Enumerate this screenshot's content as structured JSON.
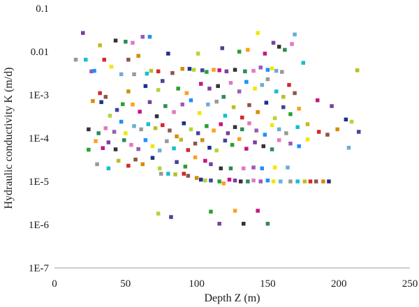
{
  "chart_data": {
    "type": "scatter",
    "title": "",
    "xlabel": "Depth Z (m)",
    "ylabel": "Hydraulic conductivity K (m/d)",
    "x_scale": "linear",
    "y_scale": "log",
    "xlim": [
      0,
      250
    ],
    "ylim": [
      1e-07,
      0.1
    ],
    "x_ticks": [
      "0",
      "50",
      "100",
      "150",
      "200",
      "250"
    ],
    "y_ticks": [
      "1E-7",
      "1E-6",
      "1E-5",
      "1E-4",
      "1E-3",
      "0.01",
      "0.1"
    ],
    "grid": false,
    "legend": "none",
    "marker": "square",
    "palette": [
      "#d62728",
      "#1f2f8c",
      "#2ca02c",
      "#7b3fa0",
      "#e377c2",
      "#f2e600",
      "#17becf",
      "#8c564b",
      "#b5d33a",
      "#ff9f1c",
      "#333333",
      "#9b59b6",
      "#6baed6",
      "#bcbd22",
      "#d68c00",
      "#444499",
      "#c71585",
      "#2e8b57",
      "#1e90ff",
      "#999999"
    ],
    "points": [
      [
        20,
        0.027
      ],
      [
        43,
        0.018
      ],
      [
        50,
        0.017
      ],
      [
        55,
        0.016
      ],
      [
        62,
        0.022
      ],
      [
        67,
        0.022
      ],
      [
        143,
        0.027
      ],
      [
        169,
        0.025
      ],
      [
        15,
        0.0065
      ],
      [
        22,
        0.0065
      ],
      [
        32,
        0.014
      ],
      [
        35,
        0.0065
      ],
      [
        52,
        0.0065
      ],
      [
        59,
        0.008
      ],
      [
        80,
        0.009
      ],
      [
        101,
        0.009
      ],
      [
        118,
        0.012
      ],
      [
        130,
        0.01
      ],
      [
        136,
        0.011
      ],
      [
        148,
        0.009
      ],
      [
        154,
        0.016
      ],
      [
        158,
        0.013
      ],
      [
        162,
        0.011
      ],
      [
        167,
        0.015
      ],
      [
        26,
        0.0035
      ],
      [
        28,
        0.0036
      ],
      [
        40,
        0.0045
      ],
      [
        47,
        0.003
      ],
      [
        56,
        0.003
      ],
      [
        65,
        0.0031
      ],
      [
        68,
        0.0036
      ],
      [
        73,
        0.0035
      ],
      [
        83,
        0.0032
      ],
      [
        90,
        0.004
      ],
      [
        95,
        0.004
      ],
      [
        98,
        0.0038
      ],
      [
        104,
        0.0037
      ],
      [
        107,
        0.0034
      ],
      [
        112,
        0.0038
      ],
      [
        116,
        0.0037
      ],
      [
        121,
        0.0035
      ],
      [
        127,
        0.0038
      ],
      [
        134,
        0.0035
      ],
      [
        140,
        0.0036
      ],
      [
        145,
        0.0043
      ],
      [
        150,
        0.0038
      ],
      [
        153,
        0.0041
      ],
      [
        156,
        0.0036
      ],
      [
        160,
        0.0034
      ],
      [
        175,
        0.0055
      ],
      [
        213,
        0.0037
      ],
      [
        32,
        0.0011
      ],
      [
        36,
        0.0009
      ],
      [
        52,
        0.0012
      ],
      [
        64,
        0.0016
      ],
      [
        73,
        0.0013
      ],
      [
        76,
        0.0021
      ],
      [
        87,
        0.0014
      ],
      [
        93,
        0.0011
      ],
      [
        103,
        0.0018
      ],
      [
        109,
        0.0014
      ],
      [
        115,
        0.0016
      ],
      [
        119,
        0.0009
      ],
      [
        124,
        0.0019
      ],
      [
        130,
        0.0012
      ],
      [
        135,
        0.002
      ],
      [
        141,
        0.0014
      ],
      [
        146,
        0.0017
      ],
      [
        150,
        0.0023
      ],
      [
        156,
        0.0012
      ],
      [
        161,
        0.0009
      ],
      [
        165,
        0.0017
      ],
      [
        169,
        0.0011
      ],
      [
        27,
        0.00072
      ],
      [
        33,
        0.00068
      ],
      [
        39,
        0.00033
      ],
      [
        44,
        0.00045
      ],
      [
        48,
        0.00061
      ],
      [
        55,
        0.0006
      ],
      [
        60,
        0.00041
      ],
      [
        67,
        0.00068
      ],
      [
        72,
        0.00032
      ],
      [
        78,
        0.00055
      ],
      [
        84,
        0.0004
      ],
      [
        90,
        0.0006
      ],
      [
        96,
        0.00075
      ],
      [
        102,
        0.00038
      ],
      [
        108,
        0.0006
      ],
      [
        114,
        0.0007
      ],
      [
        120,
        0.00033
      ],
      [
        126,
        0.00052
      ],
      [
        132,
        0.0003
      ],
      [
        137,
        0.00058
      ],
      [
        143,
        0.0004
      ],
      [
        149,
        0.00066
      ],
      [
        155,
        0.00029
      ],
      [
        161,
        0.00052
      ],
      [
        166,
        0.00036
      ],
      [
        172,
        0.00048
      ],
      [
        185,
        0.00075
      ],
      [
        195,
        0.00055
      ],
      [
        24,
        0.00016
      ],
      [
        31,
        0.00013
      ],
      [
        36,
        0.00017
      ],
      [
        42,
        0.00014
      ],
      [
        47,
        0.00024
      ],
      [
        50,
        0.00013
      ],
      [
        56,
        0.00019
      ],
      [
        61,
        0.00016
      ],
      [
        66,
        0.00021
      ],
      [
        71,
        0.00017
      ],
      [
        76,
        0.0002
      ],
      [
        81,
        0.00015
      ],
      [
        86,
        0.00011
      ],
      [
        91,
        0.00022
      ],
      [
        96,
        0.00016
      ],
      [
        101,
        0.00013
      ],
      [
        107,
        0.00019
      ],
      [
        112,
        0.00015
      ],
      [
        117,
        0.00021
      ],
      [
        122,
        0.00013
      ],
      [
        127,
        0.00018
      ],
      [
        132,
        0.00016
      ],
      [
        137,
        0.00022
      ],
      [
        142,
        0.00015
      ],
      [
        148,
        0.00012
      ],
      [
        153,
        0.0002
      ],
      [
        158,
        0.00016
      ],
      [
        163,
        0.00013
      ],
      [
        171,
        0.00018
      ],
      [
        178,
        0.00021
      ],
      [
        186,
        0.00014
      ],
      [
        192,
        0.00012
      ],
      [
        199,
        0.00016
      ],
      [
        205,
        0.00027
      ],
      [
        209,
        0.00024
      ],
      [
        214,
        0.00014
      ],
      [
        24,
        5.4e-05
      ],
      [
        29,
        8.5e-05
      ],
      [
        34,
        5.9e-05
      ],
      [
        38,
        8e-05
      ],
      [
        43,
        5.5e-05
      ],
      [
        49,
        9e-05
      ],
      [
        54,
        7e-05
      ],
      [
        59,
        5.6e-05
      ],
      [
        64,
        9e-05
      ],
      [
        69,
        6.5e-05
      ],
      [
        74,
        5.2e-05
      ],
      [
        79,
        8.5e-05
      ],
      [
        84,
        5.8e-05
      ],
      [
        89,
        9.2e-05
      ],
      [
        94,
        5.3e-05
      ],
      [
        99,
        7.5e-05
      ],
      [
        104,
        9e-05
      ],
      [
        109,
        6e-05
      ],
      [
        114,
        5.2e-05
      ],
      [
        120,
        8.8e-05
      ],
      [
        125,
        7e-05
      ],
      [
        130,
        9.5e-05
      ],
      [
        135,
        5.7e-05
      ],
      [
        141,
        8e-05
      ],
      [
        147,
        6.5e-05
      ],
      [
        153,
        5.5e-05
      ],
      [
        158,
        9e-05
      ],
      [
        166,
        7.5e-05
      ],
      [
        172,
        6.5e-05
      ],
      [
        178,
        9.3e-05
      ],
      [
        207,
        6e-05
      ],
      [
        30,
        2.5e-05
      ],
      [
        38,
        2e-05
      ],
      [
        45,
        3e-05
      ],
      [
        52,
        2.3e-05
      ],
      [
        57,
        3.2e-05
      ],
      [
        62,
        2.5e-05
      ],
      [
        69,
        3.5e-05
      ],
      [
        74,
        2e-05
      ],
      [
        86,
        2.8e-05
      ],
      [
        92,
        2.2e-05
      ],
      [
        99,
        3.6e-05
      ],
      [
        106,
        3e-05
      ],
      [
        110,
        2.5e-05
      ],
      [
        117,
        2e-05
      ],
      [
        124,
        2e-05
      ],
      [
        133,
        2e-05
      ],
      [
        140,
        2.1e-05
      ],
      [
        146,
        2e-05
      ],
      [
        155,
        2.1e-05
      ],
      [
        164,
        2.1e-05
      ],
      [
        75,
        1.5e-05
      ],
      [
        80,
        1.5e-05
      ],
      [
        85,
        1.45e-05
      ],
      [
        91,
        1.5e-05
      ],
      [
        94,
        1.35e-05
      ],
      [
        100,
        1.2e-05
      ],
      [
        103,
        1.1e-05
      ],
      [
        106,
        1.05e-05
      ],
      [
        110,
        1.05e-05
      ],
      [
        116,
        1e-05
      ],
      [
        119,
        9e-06
      ],
      [
        123,
        1.1e-05
      ],
      [
        127,
        1.05e-05
      ],
      [
        131,
        1e-05
      ],
      [
        136,
        1e-05
      ],
      [
        140,
        1.05e-05
      ],
      [
        145,
        1e-05
      ],
      [
        150,
        1.05e-05
      ],
      [
        154,
        1e-05
      ],
      [
        159,
        1e-05
      ],
      [
        166,
        1e-05
      ],
      [
        171,
        1e-05
      ],
      [
        176,
        1e-05
      ],
      [
        180,
        1e-05
      ],
      [
        184,
        1e-05
      ],
      [
        189,
        1e-05
      ],
      [
        193,
        1e-05
      ],
      [
        73,
        1.8e-06
      ],
      [
        82,
        1.5e-06
      ],
      [
        110,
        2e-06
      ],
      [
        127,
        2.1e-06
      ],
      [
        143,
        2.1e-06
      ],
      [
        116,
        1.05e-06
      ],
      [
        133,
        1.05e-06
      ],
      [
        150,
        1.05e-06
      ]
    ]
  }
}
